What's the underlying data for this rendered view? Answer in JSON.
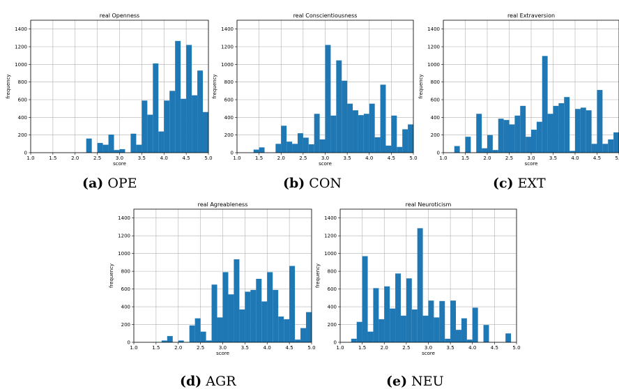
{
  "chart_data": [
    {
      "type": "bar",
      "title": "real Openness",
      "xlabel": "score",
      "ylabel": "frequency",
      "xlim": [
        1.0,
        5.0
      ],
      "ylim": [
        0,
        1500
      ],
      "xticks": [
        "1.0",
        "1.5",
        "2.0",
        "2.5",
        "3.0",
        "3.5",
        "4.0",
        "4.5",
        "5.0"
      ],
      "yticks": [
        "0",
        "200",
        "400",
        "600",
        "800",
        "1000",
        "1200",
        "1400"
      ],
      "grid": true,
      "caption_letter": "(a)",
      "caption_text": "OPE",
      "bin_edges": [
        2.25,
        2.375,
        2.5,
        2.625,
        2.75,
        2.875,
        3.0,
        3.125,
        3.25,
        3.375,
        3.5,
        3.625,
        3.75,
        3.875,
        4.0,
        4.125,
        4.25,
        4.375,
        4.5,
        4.625,
        4.75,
        4.875,
        5.0
      ],
      "values": [
        160,
        0,
        110,
        90,
        205,
        30,
        40,
        0,
        215,
        90,
        590,
        430,
        1010,
        240,
        590,
        700,
        1265,
        610,
        1220,
        650,
        930,
        460
      ]
    },
    {
      "type": "bar",
      "title": "real Conscientiousness",
      "xlabel": "score",
      "ylabel": "frequency",
      "xlim": [
        1.0,
        5.0
      ],
      "ylim": [
        0,
        1500
      ],
      "xticks": [
        "1.0",
        "1.5",
        "2.0",
        "2.5",
        "3.0",
        "3.5",
        "4.0",
        "4.5",
        "5.0"
      ],
      "yticks": [
        "0",
        "200",
        "400",
        "600",
        "800",
        "1000",
        "1200",
        "1400"
      ],
      "grid": true,
      "caption_letter": "(b)",
      "caption_text": "CON",
      "bin_edges": [
        1.375,
        1.5,
        1.625,
        1.75,
        1.875,
        2.0,
        2.125,
        2.25,
        2.375,
        2.5,
        2.625,
        2.75,
        2.875,
        3.0,
        3.125,
        3.25,
        3.375,
        3.5,
        3.625,
        3.75,
        3.875,
        4.0,
        4.125,
        4.25,
        4.375,
        4.5,
        4.625,
        4.75,
        4.875,
        5.0
      ],
      "values": [
        35,
        60,
        0,
        0,
        100,
        305,
        125,
        100,
        220,
        170,
        95,
        440,
        150,
        1220,
        420,
        1045,
        815,
        555,
        480,
        425,
        440,
        555,
        175,
        770,
        80,
        420,
        65,
        265,
        320
      ]
    },
    {
      "type": "bar",
      "title": "real Extraversion",
      "xlabel": "score",
      "ylabel": "frequency",
      "xlim": [
        1.0,
        5.0
      ],
      "ylim": [
        0,
        1500
      ],
      "xticks": [
        "1.0",
        "1.5",
        "2.0",
        "2.5",
        "3.0",
        "3.5",
        "4.0",
        "4.5",
        "5.0"
      ],
      "yticks": [
        "0",
        "200",
        "400",
        "600",
        "800",
        "1000",
        "1200",
        "1400"
      ],
      "grid": true,
      "caption_letter": "(c)",
      "caption_text": "EXT",
      "bin_edges": [
        1.25,
        1.375,
        1.5,
        1.625,
        1.75,
        1.875,
        2.0,
        2.125,
        2.25,
        2.375,
        2.5,
        2.625,
        2.75,
        2.875,
        3.0,
        3.125,
        3.25,
        3.375,
        3.5,
        3.625,
        3.75,
        3.875,
        4.0,
        4.125,
        4.25,
        4.375,
        4.5,
        4.625,
        4.75,
        4.875,
        5.0
      ],
      "values": [
        75,
        0,
        180,
        0,
        440,
        50,
        200,
        30,
        385,
        370,
        320,
        420,
        530,
        180,
        260,
        350,
        1095,
        440,
        530,
        560,
        630,
        20,
        495,
        510,
        480,
        100,
        710,
        100,
        150,
        230
      ]
    },
    {
      "type": "bar",
      "title": "real Agreableness",
      "xlabel": "score",
      "ylabel": "frequency",
      "xlim": [
        1.0,
        5.0
      ],
      "ylim": [
        0,
        1500
      ],
      "xticks": [
        "1.0",
        "1.5",
        "2.0",
        "2.5",
        "3.0",
        "3.5",
        "4.0",
        "4.5",
        "5.0"
      ],
      "yticks": [
        "0",
        "200",
        "400",
        "600",
        "800",
        "1000",
        "1200",
        "1400"
      ],
      "grid": true,
      "caption_letter": "(d)",
      "caption_text": "AGR",
      "bin_edges": [
        1.625,
        1.75,
        1.875,
        2.0,
        2.125,
        2.25,
        2.375,
        2.5,
        2.625,
        2.75,
        2.875,
        3.0,
        3.125,
        3.25,
        3.375,
        3.5,
        3.625,
        3.75,
        3.875,
        4.0,
        4.125,
        4.25,
        4.375,
        4.5,
        4.625,
        4.75,
        4.875,
        5.0
      ],
      "values": [
        20,
        70,
        0,
        20,
        0,
        190,
        270,
        120,
        20,
        650,
        280,
        790,
        540,
        935,
        370,
        570,
        590,
        715,
        460,
        790,
        590,
        290,
        260,
        860,
        30,
        160,
        340
      ]
    },
    {
      "type": "bar",
      "title": "real Neuroticism",
      "xlabel": "score",
      "ylabel": "frequency",
      "xlim": [
        1.0,
        5.0
      ],
      "ylim": [
        0,
        1500
      ],
      "xticks": [
        "1.0",
        "1.5",
        "2.0",
        "2.5",
        "3.0",
        "3.5",
        "4.0",
        "4.5",
        "5.0"
      ],
      "yticks": [
        "0",
        "200",
        "400",
        "600",
        "800",
        "1000",
        "1200",
        "1400"
      ],
      "grid": true,
      "caption_letter": "(e)",
      "caption_text": "NEU",
      "bin_edges": [
        1.25,
        1.375,
        1.5,
        1.625,
        1.75,
        1.875,
        2.0,
        2.125,
        2.25,
        2.375,
        2.5,
        2.625,
        2.75,
        2.875,
        3.0,
        3.125,
        3.25,
        3.375,
        3.5,
        3.625,
        3.75,
        3.875,
        4.0,
        4.125,
        4.25,
        4.375,
        4.5,
        4.625,
        4.75,
        4.875
      ],
      "values": [
        40,
        230,
        970,
        120,
        610,
        260,
        630,
        380,
        775,
        300,
        720,
        370,
        1285,
        300,
        470,
        280,
        465,
        40,
        470,
        140,
        270,
        30,
        390,
        0,
        195,
        0,
        0,
        0,
        100
      ]
    }
  ],
  "colors": {
    "bar": "#1f77b4",
    "grid": "#b0b0b0",
    "axis": "#000000"
  }
}
